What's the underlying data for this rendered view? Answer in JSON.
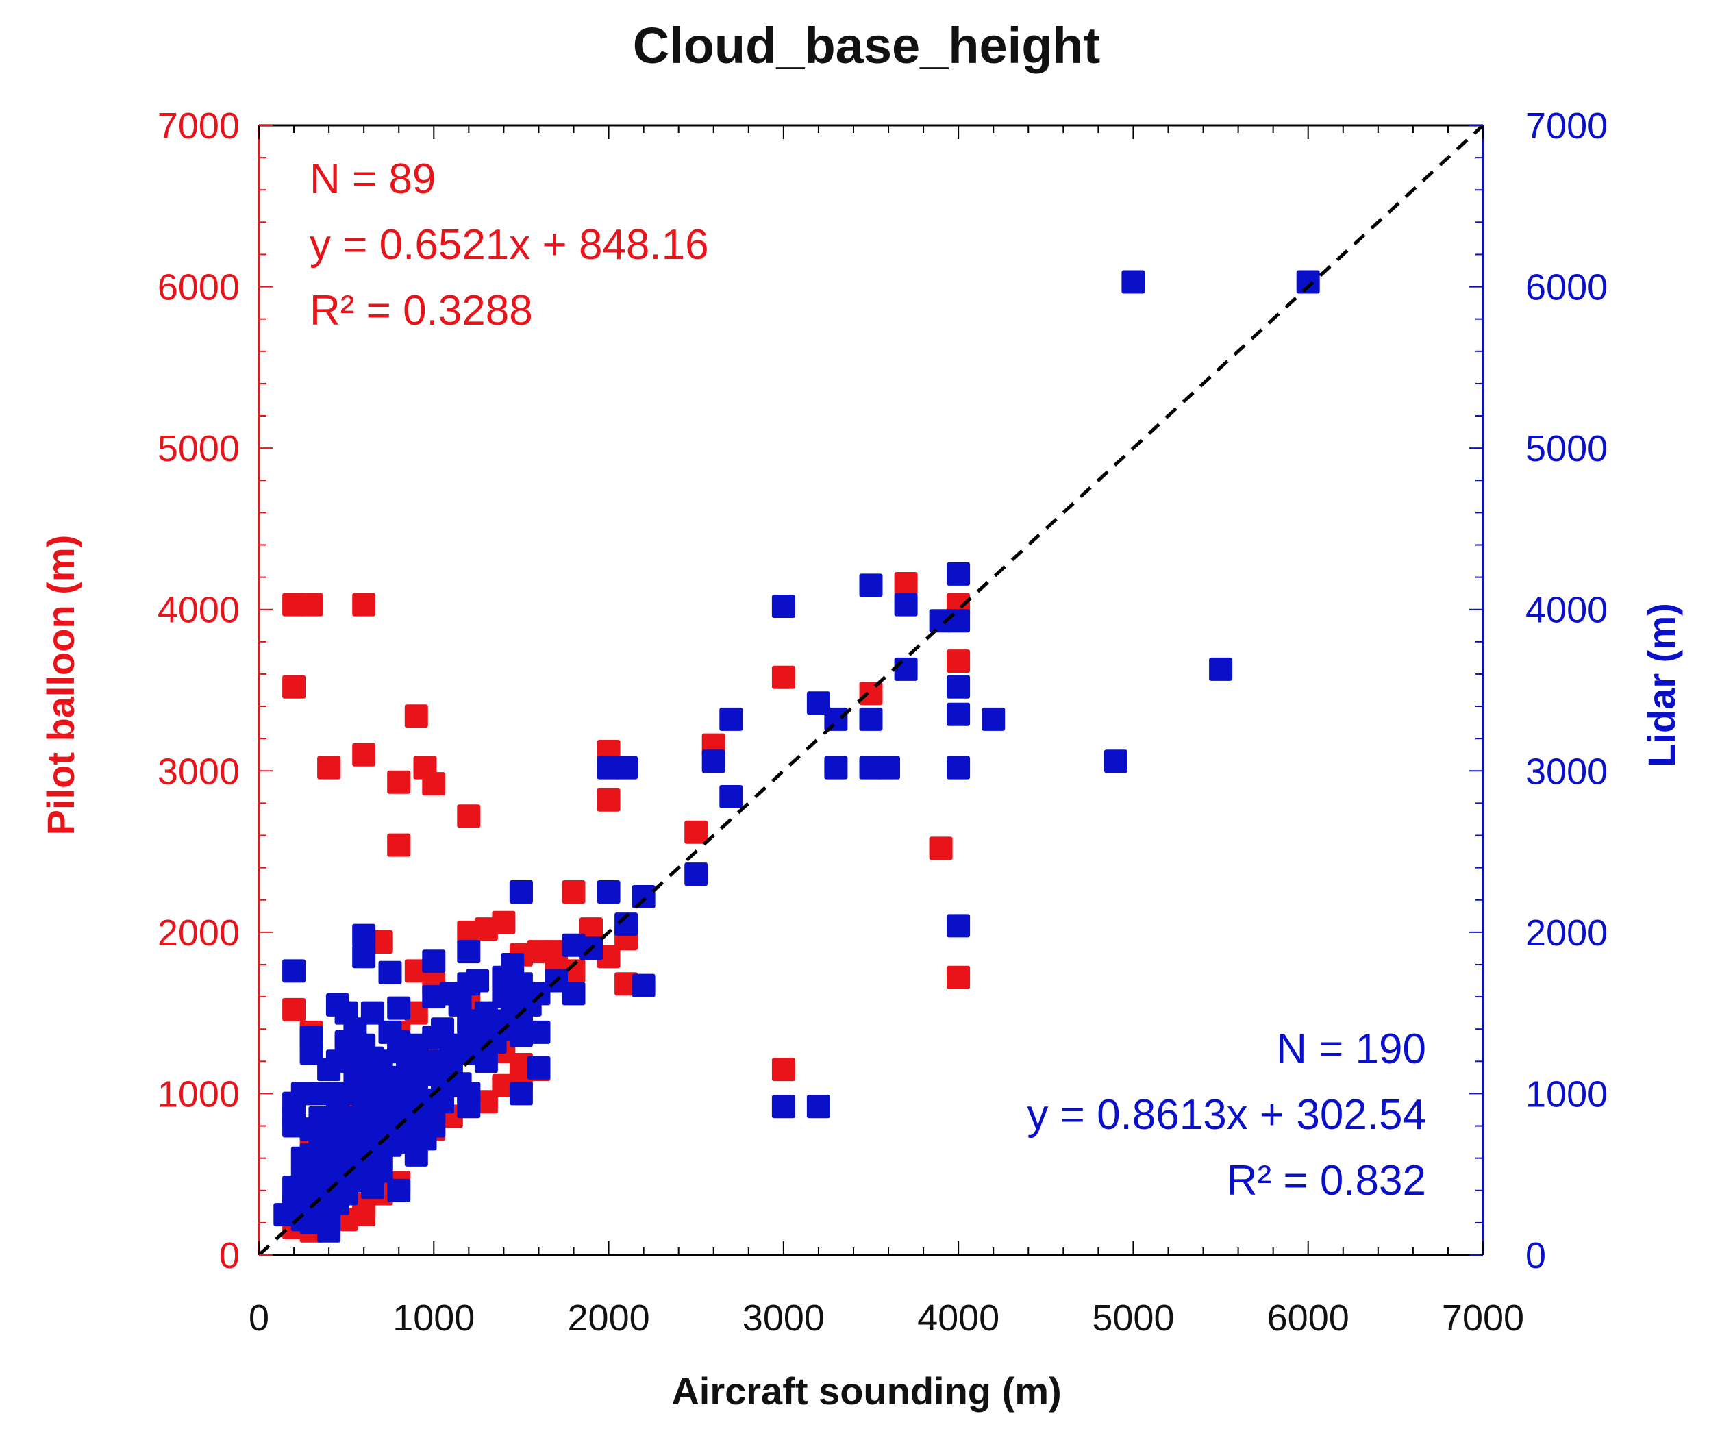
{
  "chart_data": {
    "type": "scatter",
    "title": "Cloud_base_height",
    "xlabel": "Aircraft sounding  (m)",
    "ylabel_left": "Pilot balloon  (m)",
    "ylabel_right": "Lidar  (m)",
    "xlim": [
      0,
      7000
    ],
    "ylim": [
      0,
      7000
    ],
    "x_ticks": [
      0,
      1000,
      2000,
      3000,
      4000,
      5000,
      6000,
      7000
    ],
    "y_ticks": [
      0,
      1000,
      2000,
      3000,
      4000,
      5000,
      6000,
      7000
    ],
    "reference_line": {
      "style": "dashed",
      "color": "#000000",
      "from": [
        0,
        0
      ],
      "to": [
        7000,
        7000
      ]
    },
    "series": [
      {
        "name": "Pilot balloon",
        "axis": "left",
        "color": "#e8141a",
        "annotation": {
          "n": "N = 89",
          "equation": "y = 0.6521x + 848.16",
          "r2": "R² = 0.3288"
        },
        "points": [
          [
            200,
            4030
          ],
          [
            300,
            4030
          ],
          [
            600,
            4030
          ],
          [
            200,
            3520
          ],
          [
            400,
            3020
          ],
          [
            600,
            3100
          ],
          [
            900,
            3340
          ],
          [
            950,
            3020
          ],
          [
            800,
            2930
          ],
          [
            1000,
            2920
          ],
          [
            1200,
            2720
          ],
          [
            800,
            2540
          ],
          [
            2000,
            3120
          ],
          [
            2000,
            2820
          ],
          [
            2600,
            3160
          ],
          [
            2500,
            2620
          ],
          [
            3000,
            3580
          ],
          [
            3500,
            3480
          ],
          [
            3700,
            4160
          ],
          [
            4000,
            4030
          ],
          [
            4000,
            3680
          ],
          [
            3900,
            2520
          ],
          [
            4000,
            1720
          ],
          [
            3000,
            1150
          ],
          [
            1800,
            2250
          ],
          [
            1500,
            2250
          ],
          [
            1400,
            2060
          ],
          [
            1300,
            2020
          ],
          [
            1200,
            2000
          ],
          [
            1900,
            2020
          ],
          [
            2000,
            1850
          ],
          [
            2100,
            1960
          ],
          [
            1600,
            1880
          ],
          [
            1500,
            1860
          ],
          [
            1700,
            1780
          ],
          [
            1800,
            1760
          ],
          [
            2100,
            1680
          ],
          [
            700,
            1940
          ],
          [
            900,
            1760
          ],
          [
            1000,
            1680
          ],
          [
            1100,
            1620
          ],
          [
            1200,
            1580
          ],
          [
            200,
            1520
          ],
          [
            300,
            1380
          ],
          [
            500,
            1300
          ],
          [
            800,
            1380
          ],
          [
            1000,
            1320
          ],
          [
            1300,
            1300
          ],
          [
            1400,
            1260
          ],
          [
            1500,
            1180
          ],
          [
            1100,
            1200
          ],
          [
            900,
            1120
          ],
          [
            700,
            1050
          ],
          [
            600,
            980
          ],
          [
            500,
            920
          ],
          [
            800,
            900
          ],
          [
            1000,
            900
          ],
          [
            1200,
            1000
          ],
          [
            1300,
            950
          ],
          [
            400,
            820
          ],
          [
            300,
            700
          ],
          [
            500,
            620
          ],
          [
            600,
            560
          ],
          [
            700,
            600
          ],
          [
            400,
            480
          ],
          [
            500,
            420
          ],
          [
            300,
            380
          ],
          [
            200,
            320
          ],
          [
            300,
            260
          ],
          [
            400,
            230
          ],
          [
            500,
            220
          ],
          [
            600,
            250
          ],
          [
            600,
            310
          ],
          [
            700,
            380
          ],
          [
            200,
            170
          ],
          [
            300,
            150
          ],
          [
            400,
            180
          ],
          [
            800,
            450
          ],
          [
            900,
            700
          ],
          [
            1000,
            780
          ],
          [
            1100,
            860
          ],
          [
            700,
            760
          ],
          [
            600,
            720
          ],
          [
            1500,
            1100
          ],
          [
            1400,
            1050
          ],
          [
            1600,
            1150
          ],
          [
            1200,
            1450
          ],
          [
            900,
            1500
          ],
          [
            1700,
            1880
          ]
        ]
      },
      {
        "name": "Lidar",
        "axis": "right",
        "color": "#0a10c8",
        "annotation": {
          "n": "N = 190",
          "equation": "y = 0.8613x + 302.54",
          "r2": "R² = 0.832"
        },
        "points": [
          [
            5000,
            6030
          ],
          [
            6000,
            6030
          ],
          [
            5500,
            3630
          ],
          [
            4900,
            3060
          ],
          [
            4000,
            4220
          ],
          [
            4000,
            3930
          ],
          [
            3900,
            3930
          ],
          [
            3500,
            4150
          ],
          [
            3700,
            4030
          ],
          [
            3700,
            3630
          ],
          [
            3000,
            4020
          ],
          [
            3200,
            3420
          ],
          [
            3300,
            3320
          ],
          [
            3500,
            3320
          ],
          [
            4000,
            3520
          ],
          [
            4000,
            3350
          ],
          [
            4200,
            3320
          ],
          [
            3300,
            3020
          ],
          [
            3500,
            3020
          ],
          [
            3600,
            3020
          ],
          [
            4000,
            3020
          ],
          [
            4000,
            2040
          ],
          [
            3000,
            920
          ],
          [
            3200,
            920
          ],
          [
            2700,
            3320
          ],
          [
            2600,
            3060
          ],
          [
            2700,
            2840
          ],
          [
            2500,
            2360
          ],
          [
            2000,
            3020
          ],
          [
            2100,
            3020
          ],
          [
            2000,
            2250
          ],
          [
            2200,
            2220
          ],
          [
            2100,
            2050
          ],
          [
            1800,
            1920
          ],
          [
            1900,
            1900
          ],
          [
            1800,
            1620
          ],
          [
            2200,
            1670
          ],
          [
            1500,
            2250
          ],
          [
            1500,
            1680
          ],
          [
            1400,
            1720
          ],
          [
            1500,
            1500
          ],
          [
            1400,
            1400
          ],
          [
            1500,
            1360
          ],
          [
            1300,
            1400
          ],
          [
            1500,
            1000
          ],
          [
            1600,
            1160
          ],
          [
            1300,
            1200
          ],
          [
            1200,
            1880
          ],
          [
            1200,
            1680
          ],
          [
            1100,
            1620
          ],
          [
            1200,
            1450
          ],
          [
            1200,
            1380
          ],
          [
            1200,
            1000
          ],
          [
            1200,
            920
          ],
          [
            1000,
            1820
          ],
          [
            1000,
            1600
          ],
          [
            1000,
            1350
          ],
          [
            1000,
            1200
          ],
          [
            1000,
            900
          ],
          [
            1000,
            800
          ],
          [
            900,
            1150
          ],
          [
            900,
            1020
          ],
          [
            900,
            620
          ],
          [
            800,
            1530
          ],
          [
            800,
            1320
          ],
          [
            800,
            1260
          ],
          [
            800,
            1000
          ],
          [
            800,
            880
          ],
          [
            800,
            400
          ],
          [
            750,
            1750
          ],
          [
            700,
            1100
          ],
          [
            700,
            980
          ],
          [
            700,
            850
          ],
          [
            700,
            750
          ],
          [
            650,
            1220
          ],
          [
            600,
            1980
          ],
          [
            600,
            1850
          ],
          [
            600,
            1300
          ],
          [
            600,
            1160
          ],
          [
            600,
            1040
          ],
          [
            600,
            950
          ],
          [
            600,
            820
          ],
          [
            600,
            700
          ],
          [
            600,
            580
          ],
          [
            550,
            1300
          ],
          [
            500,
            1500
          ],
          [
            500,
            1320
          ],
          [
            500,
            1000
          ],
          [
            500,
            850
          ],
          [
            500,
            780
          ],
          [
            500,
            650
          ],
          [
            500,
            520
          ],
          [
            450,
            1550
          ],
          [
            450,
            1200
          ],
          [
            450,
            900
          ],
          [
            450,
            720
          ],
          [
            400,
            1150
          ],
          [
            400,
            800
          ],
          [
            400,
            620
          ],
          [
            400,
            500
          ],
          [
            400,
            380
          ],
          [
            400,
            250
          ],
          [
            400,
            150
          ],
          [
            350,
            1000
          ],
          [
            350,
            700
          ],
          [
            350,
            430
          ],
          [
            300,
            1350
          ],
          [
            300,
            1250
          ],
          [
            300,
            780
          ],
          [
            300,
            520
          ],
          [
            300,
            320
          ],
          [
            300,
            200
          ],
          [
            250,
            1000
          ],
          [
            250,
            600
          ],
          [
            200,
            1760
          ],
          [
            200,
            940
          ],
          [
            200,
            860
          ],
          [
            200,
            800
          ],
          [
            200,
            420
          ],
          [
            200,
            300
          ],
          [
            150,
            250
          ],
          [
            700,
            520
          ],
          [
            650,
            640
          ],
          [
            750,
            680
          ],
          [
            850,
            760
          ],
          [
            950,
            850
          ],
          [
            1050,
            950
          ],
          [
            1150,
            1060
          ],
          [
            850,
            1120
          ],
          [
            1100,
            1300
          ],
          [
            1300,
            1500
          ],
          [
            1400,
            1600
          ],
          [
            1450,
            1560
          ],
          [
            1250,
            1250
          ],
          [
            1350,
            1320
          ],
          [
            950,
            960
          ],
          [
            1050,
            1060
          ],
          [
            900,
            820
          ],
          [
            750,
            1380
          ],
          [
            550,
            560
          ],
          [
            650,
            420
          ],
          [
            450,
            320
          ],
          [
            350,
            260
          ],
          [
            250,
            220
          ],
          [
            550,
            1080
          ],
          [
            850,
            950
          ],
          [
            700,
            1200
          ],
          [
            1100,
            1050
          ],
          [
            950,
            720
          ],
          [
            400,
            720
          ],
          [
            500,
            1200
          ],
          [
            650,
            900
          ],
          [
            550,
            740
          ],
          [
            800,
            1100
          ],
          [
            900,
            1300
          ],
          [
            700,
            1000
          ],
          [
            600,
            880
          ],
          [
            750,
            820
          ],
          [
            450,
            600
          ],
          [
            350,
            560
          ],
          [
            500,
            380
          ],
          [
            600,
            460
          ],
          [
            300,
            620
          ],
          [
            250,
            480
          ],
          [
            1150,
            1550
          ],
          [
            1350,
            1420
          ],
          [
            1250,
            1700
          ],
          [
            1450,
            1800
          ],
          [
            1550,
            1550
          ],
          [
            1600,
            1620
          ],
          [
            850,
            1240
          ],
          [
            950,
            1180
          ],
          [
            1050,
            1400
          ],
          [
            650,
            1500
          ],
          [
            550,
            1400
          ],
          [
            450,
            1000
          ],
          [
            350,
            850
          ],
          [
            250,
            350
          ],
          [
            800,
            700
          ],
          [
            700,
            640
          ],
          [
            600,
            640
          ],
          [
            900,
            1050
          ],
          [
            1000,
            1120
          ],
          [
            1100,
            1180
          ],
          [
            1200,
            1250
          ],
          [
            1300,
            1350
          ],
          [
            1400,
            1450
          ],
          [
            1500,
            1420
          ],
          [
            1600,
            1380
          ],
          [
            1700,
            1700
          ]
        ]
      }
    ]
  }
}
